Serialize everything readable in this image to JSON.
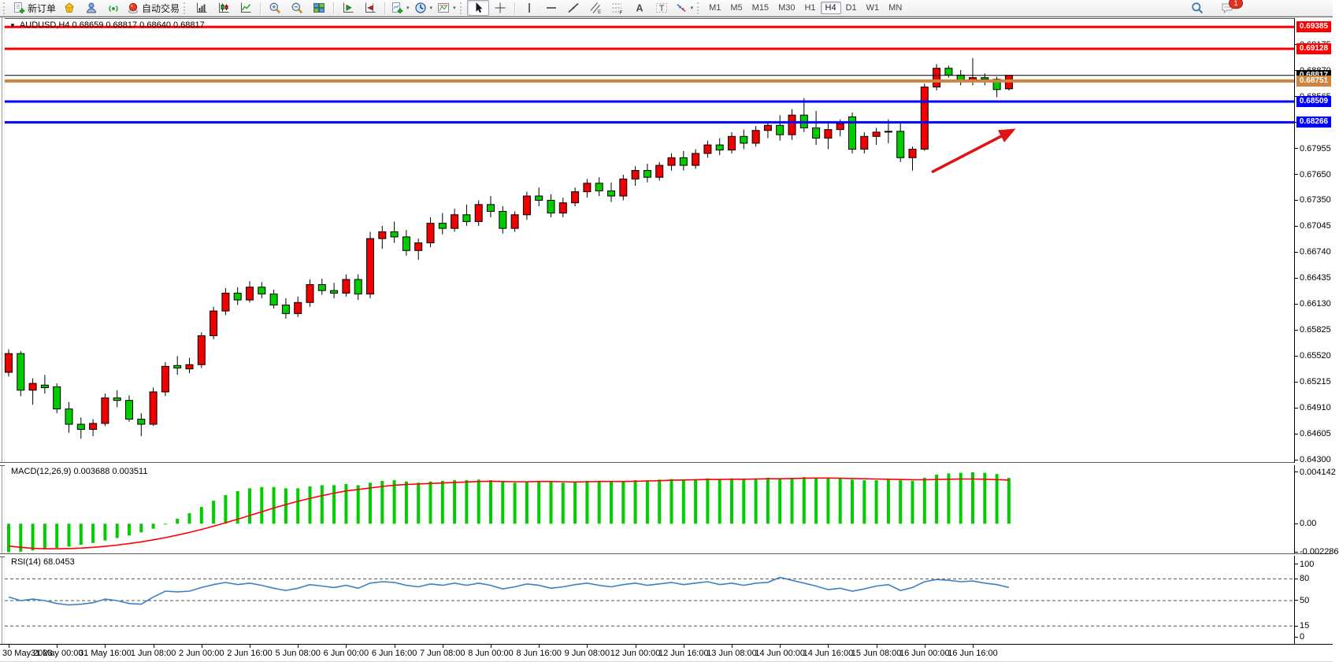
{
  "toolbar": {
    "new_order_label": "新订单",
    "autotrading_label": "自动交易",
    "timeframes": [
      "M1",
      "M5",
      "M15",
      "M30",
      "H1",
      "H4",
      "D1",
      "W1",
      "MN"
    ],
    "active_timeframe": "H4",
    "notification_badge": "1",
    "groups": [
      {
        "handle": true,
        "items": [
          {
            "name": "new-order-button",
            "icon": "new-order",
            "label": "新订单"
          },
          {
            "name": "mql5-button",
            "icon": "gold"
          },
          {
            "name": "community-button",
            "icon": "person"
          },
          {
            "name": "signals-button",
            "icon": "signal"
          },
          {
            "name": "autotrading-button",
            "icon": "autotrade",
            "label": "自动交易"
          }
        ]
      },
      {
        "handle": true,
        "items": [
          {
            "name": "bar-chart-button",
            "icon": "bars"
          },
          {
            "name": "candlestick-chart-button",
            "icon": "candles"
          },
          {
            "name": "line-chart-button",
            "icon": "linechart"
          }
        ]
      },
      {
        "sep": true,
        "items": [
          {
            "name": "zoom-in-button",
            "icon": "zoom-in"
          },
          {
            "name": "zoom-out-button",
            "icon": "zoom-out"
          },
          {
            "name": "tile-windows-button",
            "icon": "tile"
          }
        ]
      },
      {
        "sep": true,
        "items": [
          {
            "name": "auto-scroll-button",
            "icon": "autoscroll"
          },
          {
            "name": "chart-shift-button",
            "icon": "chartshift"
          }
        ]
      },
      {
        "sep": true,
        "items": [
          {
            "name": "new-chart-button",
            "icon": "new-chart",
            "caret": true
          },
          {
            "name": "periods-button",
            "icon": "clock",
            "caret": true
          },
          {
            "name": "templates-button",
            "icon": "template",
            "caret": true
          }
        ]
      },
      {
        "handle": true,
        "items": [
          {
            "name": "cursor-button",
            "icon": "cursor",
            "active": true
          },
          {
            "name": "crosshair-button",
            "icon": "crosshair"
          }
        ]
      },
      {
        "sep": true,
        "items": [
          {
            "name": "vertical-line-button",
            "icon": "vline"
          },
          {
            "name": "horizontal-line-button",
            "icon": "hline"
          },
          {
            "name": "trendline-button",
            "icon": "trendline"
          },
          {
            "name": "equidistant-channel-button",
            "icon": "channel"
          },
          {
            "name": "fibonacci-button",
            "icon": "fibo"
          },
          {
            "name": "text-button",
            "icon": "text"
          },
          {
            "name": "text-label-button",
            "icon": "label"
          },
          {
            "name": "arrows-button",
            "icon": "arrows",
            "caret": true
          }
        ]
      },
      {
        "handle": true,
        "timeframes": true
      }
    ],
    "right_buttons": [
      {
        "name": "search-button",
        "icon": "search"
      },
      {
        "name": "notifications-button",
        "icon": "chat",
        "badge": "1"
      }
    ]
  },
  "chart": {
    "symbol": "AUDUSD",
    "period": "H4",
    "title": "AUDUSD,H4 0.68659 0.68817 0.68640 0.68817",
    "ohlc": {
      "open": "0.68659",
      "high": "0.68817",
      "low": "0.68640",
      "close": "0.68817"
    }
  },
  "indicators": {
    "macd_label": "MACD(12,26,9) 0.003688 0.003511",
    "rsi_label": "RSI(14) 68.0453"
  },
  "chart_data": [
    {
      "type": "candlestick",
      "title": "AUDUSD,H4",
      "ylim": [
        0.64267,
        0.69489
      ],
      "y_ticks": [
        0.69175,
        0.6887,
        0.68565,
        0.6826,
        0.67955,
        0.6765,
        0.6735,
        0.67045,
        0.6674,
        0.66435,
        0.6613,
        0.65825,
        0.6552,
        0.65215,
        0.6491,
        0.64605,
        0.643
      ],
      "x_labels": [
        "30 May 2023",
        "31 May 00:00",
        "31 May 16:00",
        "1 Jun 08:00",
        "2 Jun 00:00",
        "2 Jun 16:00",
        "5 Jun 08:00",
        "6 Jun 00:00",
        "6 Jun 16:00",
        "7 Jun 08:00",
        "8 Jun 00:00",
        "8 Jun 16:00",
        "9 Jun 08:00",
        "12 Jun 00:00",
        "12 Jun 16:00",
        "13 Jun 08:00",
        "14 Jun 00:00",
        "14 Jun 16:00",
        "15 Jun 08:00",
        "16 Jun 00:00",
        "16 Jun 16:00"
      ],
      "candles_per_label": 4,
      "up_color": "#f20000",
      "down_color": "#00cc00",
      "wick_color": "#000000",
      "candles": [
        [
          0.6533,
          0.656,
          0.6528,
          0.6555
        ],
        [
          0.6555,
          0.6558,
          0.6505,
          0.6512
        ],
        [
          0.6512,
          0.6526,
          0.6495,
          0.652
        ],
        [
          0.6518,
          0.653,
          0.6508,
          0.6515
        ],
        [
          0.6516,
          0.652,
          0.6485,
          0.649
        ],
        [
          0.649,
          0.6498,
          0.6462,
          0.6472
        ],
        [
          0.6472,
          0.648,
          0.6455,
          0.6466
        ],
        [
          0.6466,
          0.6478,
          0.6458,
          0.6473
        ],
        [
          0.6473,
          0.6508,
          0.647,
          0.6503
        ],
        [
          0.6503,
          0.6512,
          0.6492,
          0.65
        ],
        [
          0.65,
          0.6506,
          0.6475,
          0.6478
        ],
        [
          0.6478,
          0.6485,
          0.6458,
          0.6472
        ],
        [
          0.6472,
          0.6515,
          0.647,
          0.651
        ],
        [
          0.651,
          0.6545,
          0.6505,
          0.654
        ],
        [
          0.6541,
          0.6552,
          0.653,
          0.6538
        ],
        [
          0.6537,
          0.655,
          0.6532,
          0.6542
        ],
        [
          0.6542,
          0.658,
          0.6538,
          0.6576
        ],
        [
          0.6576,
          0.661,
          0.6572,
          0.6605
        ],
        [
          0.6605,
          0.6632,
          0.66,
          0.6626
        ],
        [
          0.6626,
          0.6633,
          0.6612,
          0.6618
        ],
        [
          0.6618,
          0.664,
          0.6615,
          0.6633
        ],
        [
          0.6633,
          0.6639,
          0.662,
          0.6625
        ],
        [
          0.6625,
          0.663,
          0.6608,
          0.6612
        ],
        [
          0.6612,
          0.662,
          0.6596,
          0.6602
        ],
        [
          0.6602,
          0.6622,
          0.6598,
          0.6615
        ],
        [
          0.6615,
          0.6642,
          0.661,
          0.6636
        ],
        [
          0.6636,
          0.6643,
          0.6624,
          0.6629
        ],
        [
          0.6629,
          0.6638,
          0.662,
          0.6626
        ],
        [
          0.6626,
          0.6648,
          0.6622,
          0.6642
        ],
        [
          0.6642,
          0.6648,
          0.6618,
          0.6625
        ],
        [
          0.6625,
          0.6698,
          0.662,
          0.669
        ],
        [
          0.669,
          0.6705,
          0.6678,
          0.6698
        ],
        [
          0.6698,
          0.671,
          0.6685,
          0.6692
        ],
        [
          0.6692,
          0.67,
          0.667,
          0.6676
        ],
        [
          0.6676,
          0.669,
          0.6665,
          0.6685
        ],
        [
          0.6685,
          0.6715,
          0.668,
          0.6708
        ],
        [
          0.6708,
          0.672,
          0.6695,
          0.6702
        ],
        [
          0.6702,
          0.6725,
          0.6698,
          0.6718
        ],
        [
          0.6718,
          0.673,
          0.6705,
          0.671
        ],
        [
          0.671,
          0.6735,
          0.6705,
          0.673
        ],
        [
          0.673,
          0.674,
          0.6715,
          0.6722
        ],
        [
          0.6722,
          0.6728,
          0.6696,
          0.6702
        ],
        [
          0.6702,
          0.6722,
          0.6698,
          0.6718
        ],
        [
          0.6718,
          0.6745,
          0.6712,
          0.674
        ],
        [
          0.674,
          0.675,
          0.6728,
          0.6735
        ],
        [
          0.6735,
          0.6742,
          0.6715,
          0.672
        ],
        [
          0.672,
          0.6738,
          0.6715,
          0.6732
        ],
        [
          0.6732,
          0.675,
          0.6728,
          0.6745
        ],
        [
          0.6745,
          0.676,
          0.6738,
          0.6755
        ],
        [
          0.6755,
          0.6762,
          0.674,
          0.6746
        ],
        [
          0.6746,
          0.6756,
          0.6733,
          0.674
        ],
        [
          0.674,
          0.6765,
          0.6735,
          0.676
        ],
        [
          0.676,
          0.6775,
          0.6752,
          0.677
        ],
        [
          0.677,
          0.6778,
          0.6756,
          0.6762
        ],
        [
          0.6762,
          0.678,
          0.6758,
          0.6776
        ],
        [
          0.6776,
          0.679,
          0.677,
          0.6785
        ],
        [
          0.6785,
          0.6793,
          0.677,
          0.6776
        ],
        [
          0.6776,
          0.6795,
          0.6772,
          0.679
        ],
        [
          0.679,
          0.6805,
          0.6785,
          0.68
        ],
        [
          0.68,
          0.6808,
          0.6788,
          0.6794
        ],
        [
          0.6794,
          0.6815,
          0.679,
          0.681
        ],
        [
          0.681,
          0.6818,
          0.6795,
          0.6802
        ],
        [
          0.6802,
          0.6822,
          0.6798,
          0.6817
        ],
        [
          0.6817,
          0.6828,
          0.6808,
          0.6823
        ],
        [
          0.6823,
          0.6835,
          0.6805,
          0.6812
        ],
        [
          0.6812,
          0.6842,
          0.6806,
          0.6835
        ],
        [
          0.6835,
          0.6855,
          0.6815,
          0.682
        ],
        [
          0.682,
          0.684,
          0.68,
          0.6808
        ],
        [
          0.6808,
          0.6825,
          0.6795,
          0.6818
        ],
        [
          0.6818,
          0.683,
          0.681,
          0.6825
        ],
        [
          0.6833,
          0.6838,
          0.679,
          0.6795
        ],
        [
          0.6795,
          0.6815,
          0.679,
          0.681
        ],
        [
          0.681,
          0.682,
          0.68,
          0.6815
        ],
        [
          0.6815,
          0.683,
          0.6802,
          0.6816
        ],
        [
          0.6816,
          0.6825,
          0.678,
          0.6785
        ],
        [
          0.6785,
          0.6798,
          0.677,
          0.6795
        ],
        [
          0.6795,
          0.6872,
          0.6793,
          0.6868
        ],
        [
          0.6868,
          0.6895,
          0.6864,
          0.689
        ],
        [
          0.689,
          0.6893,
          0.6879,
          0.6882
        ],
        [
          0.6882,
          0.6888,
          0.687,
          0.6875
        ],
        [
          0.6875,
          0.6902,
          0.687,
          0.6879
        ],
        [
          0.6879,
          0.6884,
          0.687,
          0.6877
        ],
        [
          0.6877,
          0.688,
          0.6856,
          0.6865
        ],
        [
          0.68659,
          0.68817,
          0.6864,
          0.68817
        ]
      ],
      "hlines": [
        {
          "price": 0.69385,
          "label": "0.69385",
          "color": "#ff0000",
          "width": 3
        },
        {
          "price": 0.69128,
          "label": "0.69128",
          "color": "#ff0000",
          "width": 3
        },
        {
          "price": 0.68817,
          "label": "0.68817",
          "color": "#000000",
          "width": 1
        },
        {
          "price": 0.68751,
          "label": "0.68751",
          "color": "#cd8540",
          "width": 4
        },
        {
          "price": 0.68509,
          "label": "0.68509",
          "color": "#0000ff",
          "width": 3
        },
        {
          "price": 0.68266,
          "label": "0.68266",
          "color": "#0000ff",
          "width": 3
        }
      ],
      "arrow": {
        "from": {
          "index": 76.6,
          "price": 0.6768
        },
        "to": {
          "index": 84.2,
          "price": 0.68225
        },
        "color": "#e01212",
        "width": 3.5
      },
      "legend_position": "none",
      "grid": false
    },
    {
      "type": "bar",
      "name": "MACD(12,26,9)",
      "values": [
        "0.003688",
        "0.003511"
      ],
      "ylim": [
        -0.002387,
        0.00471
      ],
      "y_tick_labels": [
        "0.004142",
        "0.00",
        "-0.002286"
      ],
      "bar_color": "#00cc00",
      "signal_color": "#ff0000",
      "histogram": [
        -0.00229,
        -0.00225,
        -0.00215,
        -0.00205,
        -0.00195,
        -0.00185,
        -0.0017,
        -0.00155,
        -0.00135,
        -0.00115,
        -0.00095,
        -0.0007,
        -0.0004,
        -5e-05,
        0.0004,
        0.00085,
        0.00135,
        0.00185,
        0.0023,
        0.00262,
        0.00285,
        0.00295,
        0.00295,
        0.00285,
        0.00285,
        0.003,
        0.0031,
        0.0031,
        0.0032,
        0.0031,
        0.0033,
        0.00345,
        0.0035,
        0.0034,
        0.0033,
        0.0034,
        0.00345,
        0.0035,
        0.0035,
        0.00355,
        0.0035,
        0.00335,
        0.0033,
        0.0034,
        0.00345,
        0.00335,
        0.0033,
        0.00335,
        0.00345,
        0.00345,
        0.00335,
        0.0034,
        0.0035,
        0.0035,
        0.00355,
        0.0036,
        0.00355,
        0.0036,
        0.00365,
        0.0036,
        0.00365,
        0.0036,
        0.00365,
        0.0037,
        0.00365,
        0.0037,
        0.00375,
        0.0037,
        0.00365,
        0.00365,
        0.00355,
        0.0035,
        0.0035,
        0.00355,
        0.0035,
        0.00345,
        0.0037,
        0.00395,
        0.00405,
        0.0041,
        0.00414,
        0.0041,
        0.004,
        0.00369
      ],
      "signal": [
        -0.0018,
        -0.0019,
        -0.00198,
        -0.00202,
        -0.00202,
        -0.002,
        -0.00196,
        -0.0019,
        -0.00182,
        -0.00172,
        -0.0016,
        -0.00146,
        -0.0013,
        -0.00112,
        -0.00092,
        -0.0007,
        -0.00046,
        -0.0002,
        8e-05,
        0.00036,
        0.00066,
        0.00096,
        0.00126,
        0.00154,
        0.0018,
        0.00204,
        0.00226,
        0.00246,
        0.00264,
        0.00276,
        0.00288,
        0.003,
        0.0031,
        0.00316,
        0.0032,
        0.00324,
        0.00328,
        0.00332,
        0.00336,
        0.0034,
        0.00342,
        0.0034,
        0.00338,
        0.00338,
        0.0034,
        0.0034,
        0.00338,
        0.00336,
        0.00338,
        0.0034,
        0.0034,
        0.0034,
        0.00342,
        0.00344,
        0.00346,
        0.0035,
        0.00352,
        0.00354,
        0.00356,
        0.00356,
        0.00358,
        0.00358,
        0.0036,
        0.00362,
        0.00362,
        0.00364,
        0.00366,
        0.00368,
        0.00368,
        0.00366,
        0.00364,
        0.00362,
        0.0036,
        0.00358,
        0.00356,
        0.00354,
        0.00354,
        0.00356,
        0.00358,
        0.0036,
        0.0036,
        0.00358,
        0.00355,
        0.003511
      ]
    },
    {
      "type": "line",
      "name": "RSI(14)",
      "value": "68.0453",
      "ylim": [
        -9.7,
        111.8
      ],
      "y_tick_labels": [
        "100",
        "80",
        "50",
        "15",
        "0"
      ],
      "levels": [
        80,
        50,
        15
      ],
      "line_color": "#3c7fc8",
      "values": [
        55,
        50,
        52,
        50,
        46,
        44,
        45,
        47,
        52,
        50,
        46,
        45,
        55,
        63,
        62,
        63,
        68,
        72,
        75,
        72,
        74,
        71,
        67,
        64,
        67,
        72,
        70,
        68,
        71,
        67,
        74,
        76,
        75,
        71,
        69,
        73,
        71,
        74,
        71,
        74,
        71,
        66,
        69,
        73,
        71,
        67,
        69,
        72,
        74,
        71,
        69,
        72,
        74,
        71,
        73,
        75,
        72,
        74,
        76,
        72,
        74,
        71,
        74,
        75,
        82,
        78,
        74,
        70,
        65,
        67,
        63,
        66,
        70,
        72,
        64,
        68,
        76,
        79,
        78,
        76,
        77,
        74,
        72,
        68.0453
      ]
    }
  ]
}
